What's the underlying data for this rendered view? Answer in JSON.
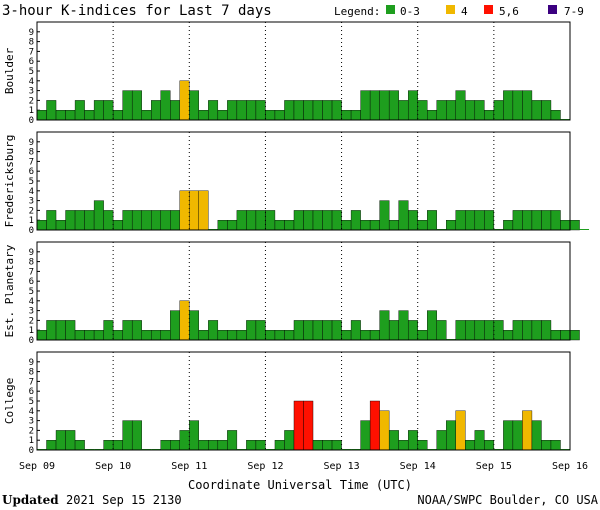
{
  "title": "3-hour K-indices for Last 7 days",
  "legend": {
    "label": "Legend:",
    "entries": [
      {
        "label": "0-3",
        "color": "#1e9e1e"
      },
      {
        "label": "4",
        "color": "#f0b800"
      },
      {
        "label": "5,6",
        "color": "#ff1000"
      },
      {
        "label": "7-9",
        "color": "#3b0080"
      }
    ]
  },
  "footer": {
    "updated_label": "Updated",
    "updated_value": "2021 Sep 15 2130",
    "source": "NOAA/SWPC Boulder, CO USA"
  },
  "chart_data": [
    {
      "type": "bar",
      "ylabel": "Boulder",
      "ylim": [
        0,
        9
      ],
      "yticks": [
        "0",
        "1",
        "2",
        "3",
        "4",
        "5",
        "6",
        "7",
        "8",
        "9"
      ],
      "xticks": [
        "Sep 09",
        "Sep 10",
        "Sep 11",
        "Sep 12",
        "Sep 13",
        "Sep 14",
        "Sep 15",
        "Sep 16"
      ],
      "values": [
        1,
        2,
        1,
        1,
        2,
        1,
        2,
        2,
        1,
        3,
        3,
        1,
        2,
        3,
        2,
        4,
        3,
        1,
        2,
        1,
        2,
        2,
        2,
        2,
        1,
        1,
        2,
        2,
        2,
        2,
        2,
        2,
        1,
        1,
        3,
        3,
        3,
        3,
        2,
        3,
        2,
        1,
        2,
        2,
        3,
        2,
        2,
        1,
        2,
        3,
        3,
        3,
        2,
        2,
        1,
        0
      ]
    },
    {
      "type": "bar",
      "ylabel": "Fredericksburg",
      "ylim": [
        0,
        9
      ],
      "yticks": [
        "0",
        "1",
        "2",
        "3",
        "4",
        "5",
        "6",
        "7",
        "8",
        "9"
      ],
      "xticks": [
        "Sep 09",
        "Sep 10",
        "Sep 11",
        "Sep 12",
        "Sep 13",
        "Sep 14",
        "Sep 15",
        "Sep 16"
      ],
      "values": [
        1,
        2,
        1,
        2,
        2,
        2,
        3,
        2,
        1,
        2,
        2,
        2,
        2,
        2,
        2,
        4,
        4,
        4,
        0,
        1,
        1,
        2,
        2,
        2,
        2,
        1,
        1,
        2,
        2,
        2,
        2,
        2,
        1,
        2,
        1,
        1,
        3,
        1,
        3,
        2,
        1,
        2,
        0,
        1,
        2,
        2,
        2,
        2,
        0,
        1,
        2,
        2,
        2,
        2,
        2,
        1,
        1,
        0
      ]
    },
    {
      "type": "bar",
      "ylabel": "Est. Planetary",
      "ylim": [
        0,
        9
      ],
      "yticks": [
        "0",
        "1",
        "2",
        "3",
        "4",
        "5",
        "6",
        "7",
        "8",
        "9"
      ],
      "xticks": [
        "Sep 09",
        "Sep 10",
        "Sep 11",
        "Sep 12",
        "Sep 13",
        "Sep 14",
        "Sep 15",
        "Sep 16"
      ],
      "values": [
        1,
        2,
        2,
        2,
        1,
        1,
        1,
        2,
        1,
        2,
        2,
        1,
        1,
        1,
        3,
        4,
        3,
        1,
        2,
        1,
        1,
        1,
        2,
        2,
        1,
        1,
        1,
        2,
        2,
        2,
        2,
        2,
        1,
        2,
        1,
        1,
        3,
        2,
        3,
        2,
        1,
        3,
        2,
        0,
        2,
        2,
        2,
        2,
        2,
        1,
        2,
        2,
        2,
        2,
        1,
        1,
        1
      ]
    },
    {
      "type": "bar",
      "ylabel": "College",
      "ylim": [
        0,
        9
      ],
      "yticks": [
        "0",
        "1",
        "2",
        "3",
        "4",
        "5",
        "6",
        "7",
        "8",
        "9"
      ],
      "xticks": [
        "Sep 09",
        "Sep 10",
        "Sep 11",
        "Sep 12",
        "Sep 13",
        "Sep 14",
        "Sep 15",
        "Sep 16"
      ],
      "values": [
        0,
        1,
        2,
        2,
        1,
        0,
        0,
        1,
        1,
        3,
        3,
        0,
        0,
        1,
        1,
        2,
        3,
        1,
        1,
        1,
        2,
        0,
        1,
        1,
        0,
        1,
        2,
        5,
        5,
        1,
        1,
        1,
        0,
        0,
        3,
        5,
        4,
        2,
        1,
        2,
        1,
        0,
        2,
        3,
        4,
        1,
        2,
        1,
        0,
        3,
        3,
        4,
        3,
        1,
        1,
        0
      ]
    }
  ]
}
